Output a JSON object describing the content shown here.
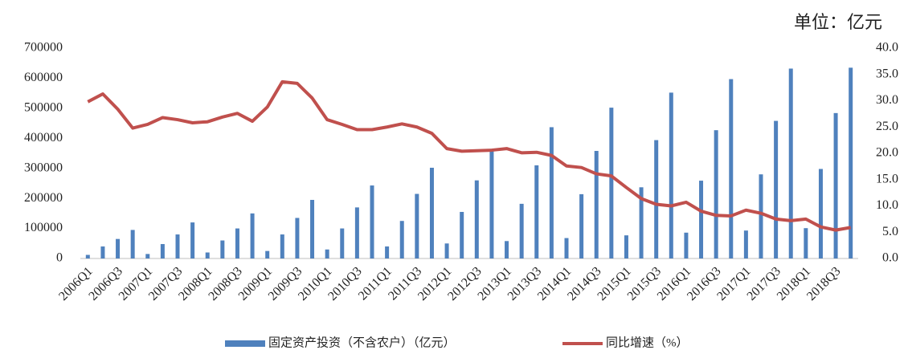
{
  "chart_data": {
    "type": "bar_line",
    "unit": "单位：亿元",
    "categories": [
      "2006Q1",
      null,
      "2006Q3",
      null,
      "2007Q1",
      null,
      "2007Q3",
      null,
      "2008Q1",
      null,
      "2008Q3",
      null,
      "2009Q1",
      null,
      "2009Q3",
      null,
      "2010Q1",
      null,
      "2010Q3",
      null,
      "2011Q1",
      null,
      "2011Q3",
      null,
      "2012Q1",
      null,
      "2012Q3",
      null,
      "2013Q1",
      null,
      "2013Q3",
      null,
      "2014Q1",
      null,
      "2014Q3",
      null,
      "2015Q1",
      null,
      "2015Q3",
      null,
      "2016Q1",
      null,
      "2016Q3",
      null,
      "2017Q1",
      null,
      "2017Q3",
      null,
      "2018Q1",
      null,
      "2018Q3",
      null
    ],
    "series": [
      {
        "name": "固定资产投资（不含农户）（亿元）",
        "color": "#4f81bd",
        "type": "bar",
        "values": [
          12000,
          40000,
          65000,
          95000,
          15000,
          48000,
          80000,
          120000,
          20000,
          60000,
          100000,
          150000,
          25000,
          80000,
          135000,
          195000,
          30000,
          100000,
          170000,
          243000,
          40000,
          125000,
          215000,
          302000,
          50000,
          155000,
          260000,
          365000,
          58000,
          182000,
          310000,
          437000,
          68000,
          214000,
          358000,
          502000,
          77000,
          237000,
          394000,
          552000,
          86000,
          259000,
          427000,
          597000,
          93000,
          280000,
          458000,
          632000,
          101000,
          298000,
          484000,
          635000
        ]
      },
      {
        "name": "同比增速（%）",
        "color": "#c0504d",
        "type": "line",
        "axis": "y2",
        "values": [
          29.8,
          31.3,
          28.4,
          24.8,
          25.5,
          26.8,
          26.4,
          25.8,
          26.0,
          26.9,
          27.6,
          26.1,
          28.8,
          33.6,
          33.3,
          30.5,
          26.4,
          25.5,
          24.5,
          24.5,
          25.0,
          25.6,
          25.0,
          23.8,
          20.9,
          20.4,
          20.5,
          20.6,
          20.9,
          20.1,
          20.2,
          19.6,
          17.6,
          17.3,
          16.1,
          15.7,
          13.5,
          11.4,
          10.3,
          10.0,
          10.7,
          9.0,
          8.2,
          8.1,
          9.2,
          8.6,
          7.5,
          7.2,
          7.5,
          6.0,
          5.4,
          5.9
        ]
      }
    ],
    "ylim": [
      0,
      700000
    ],
    "yticks": [
      0,
      100000,
      200000,
      300000,
      400000,
      500000,
      600000,
      700000
    ],
    "y2lim": [
      0,
      40
    ],
    "y2ticks": [
      {
        "value": 0,
        "label": "0.0"
      },
      {
        "value": 5,
        "label": "5.0"
      },
      {
        "value": 10,
        "label": "10.0"
      },
      {
        "value": 15,
        "label": "15.0"
      },
      {
        "value": 20,
        "label": "20.0"
      },
      {
        "value": 25,
        "label": "25.0"
      },
      {
        "value": 30,
        "label": "30.0"
      },
      {
        "value": 35,
        "label": "35.0"
      },
      {
        "value": 40,
        "label": "40.0"
      }
    ],
    "legend": "bottom"
  }
}
